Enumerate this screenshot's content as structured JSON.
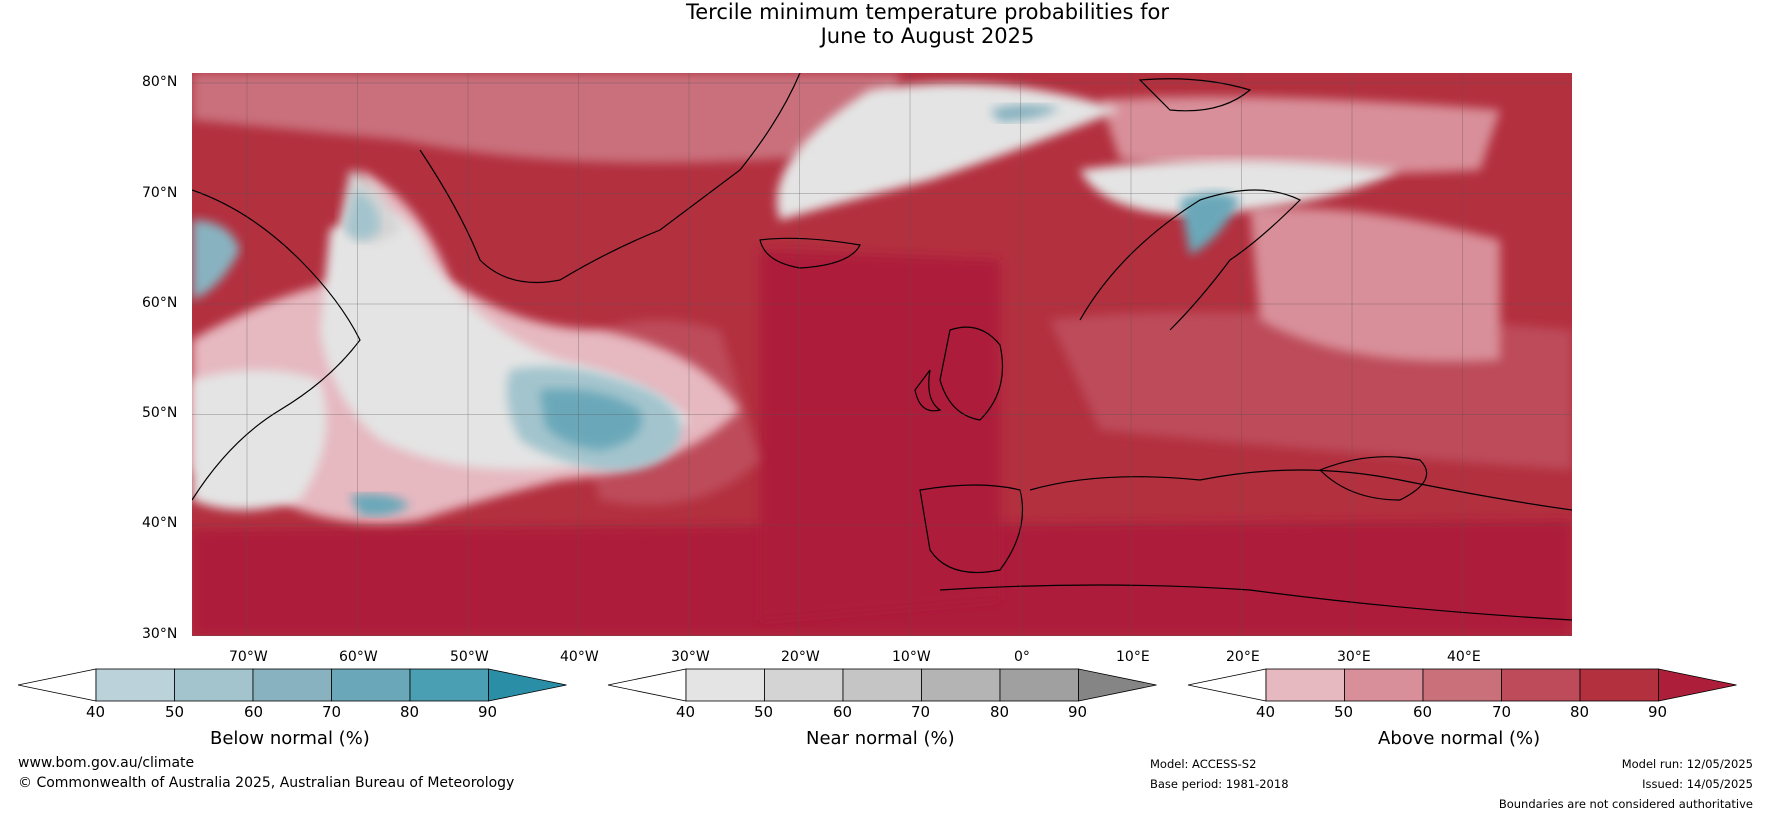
{
  "title_line1": "Tercile minimum temperature probabilities for",
  "title_line2": "June to August 2025",
  "lat_labels": [
    "80°N",
    "70°N",
    "60°N",
    "50°N",
    "40°N",
    "30°N"
  ],
  "lon_labels": [
    "70°W",
    "60°W",
    "50°W",
    "40°W",
    "30°W",
    "20°W",
    "10°W",
    "0°",
    "10°E",
    "20°E",
    "30°E",
    "40°E"
  ],
  "colorbars": [
    {
      "label": "Below normal (%)",
      "ticks": [
        "40",
        "50",
        "60",
        "70",
        "80",
        "90"
      ],
      "colors": [
        "#bcd2da",
        "#a3c4cd",
        "#88b2c0",
        "#6aa8b9",
        "#4b9fb2",
        "#2a8fa6"
      ]
    },
    {
      "label": "Near normal (%)",
      "ticks": [
        "40",
        "50",
        "60",
        "70",
        "80",
        "90"
      ],
      "colors": [
        "#e4e4e4",
        "#d4d4d4",
        "#c5c5c5",
        "#b4b4b4",
        "#a0a0a0",
        "#858585"
      ]
    },
    {
      "label": "Above normal (%)",
      "ticks": [
        "40",
        "50",
        "60",
        "70",
        "80",
        "90"
      ],
      "colors": [
        "#e6b8c0",
        "#d88f99",
        "#c9707b",
        "#bd4b5a",
        "#b3303f",
        "#ad1e3a"
      ]
    }
  ],
  "footer": {
    "url": "www.bom.gov.au/climate",
    "copyright": "© Commonwealth of Australia 2025, Australian Bureau of Meteorology",
    "model": "Model: ACCESS-S2",
    "base_period": "Base period: 1981-2018",
    "model_run": "Model run: 12/05/2025",
    "issued": "Issued: 14/05/2025",
    "disclaimer": "Boundaries are not considered authoritative"
  }
}
